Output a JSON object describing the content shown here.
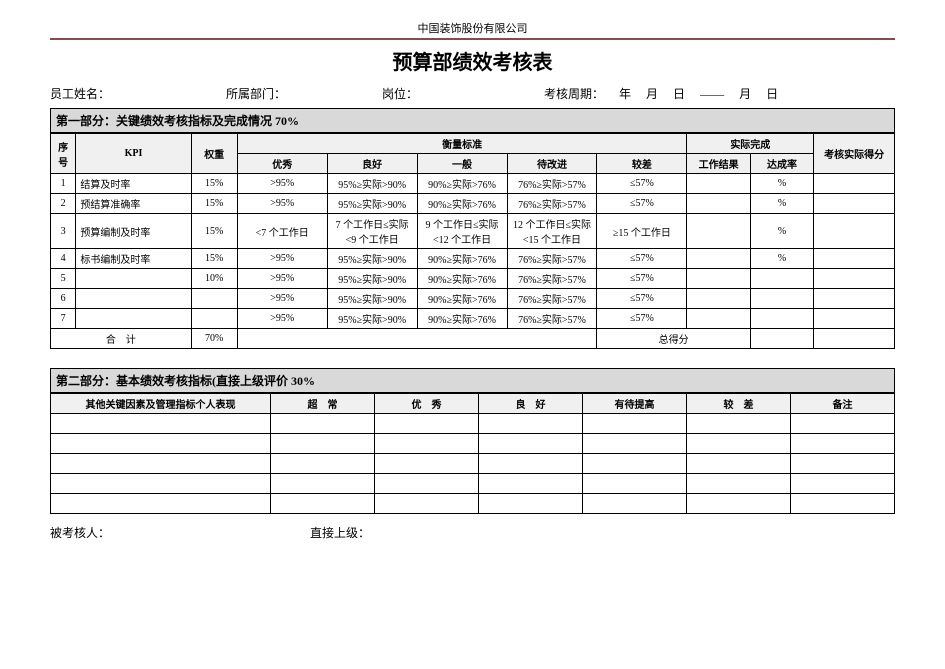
{
  "company": "中国装饰股份有限公司",
  "title": "预算部绩效考核表",
  "info": {
    "name_label": "员工姓名：",
    "dept_label": "所属部门：",
    "post_label": "岗位：",
    "period_label": "考核周期：",
    "year": "年",
    "month": "月",
    "day": "日",
    "dash": "——",
    "month2": "月",
    "day2": "日"
  },
  "section1": {
    "header": "第一部分：关键绩效考核指标及完成情况 70%",
    "cols": {
      "idx": "序号",
      "kpi": "KPI",
      "weight": "权重",
      "standard": "衡量标准",
      "excellent": "优秀",
      "good": "良好",
      "normal": "一般",
      "improve": "待改进",
      "poor": "较差",
      "actual": "实际完成",
      "work_result": "工作结果",
      "rate": "达成率",
      "score": "考核实际得分"
    },
    "rows": [
      {
        "idx": "1",
        "kpi": "结算及时率",
        "wt": "15%",
        "ex": ">95%",
        "gd": "95%≥实际>90%",
        "nm": "90%≥实际>76%",
        "im": "76%≥实际>57%",
        "pr": "≤57%",
        "res": "",
        "rate": "%",
        "sc": ""
      },
      {
        "idx": "2",
        "kpi": "预结算准确率",
        "wt": "15%",
        "ex": ">95%",
        "gd": "95%≥实际>90%",
        "nm": "90%≥实际>76%",
        "im": "76%≥实际>57%",
        "pr": "≤57%",
        "res": "",
        "rate": "%",
        "sc": ""
      },
      {
        "idx": "3",
        "kpi": "预算编制及时率",
        "wt": "15%",
        "ex": "<7 个工作日",
        "gd": "7 个工作日≤实际<9 个工作日",
        "nm": "9 个工作日≤实际<12 个工作日",
        "im": "12 个工作日≤实际<15 个工作日",
        "pr": "≥15 个工作日",
        "res": "",
        "rate": "%",
        "sc": ""
      },
      {
        "idx": "4",
        "kpi": "标书编制及时率",
        "wt": "15%",
        "ex": ">95%",
        "gd": "95%≥实际>90%",
        "nm": "90%≥实际>76%",
        "im": "76%≥实际>57%",
        "pr": "≤57%",
        "res": "",
        "rate": "%",
        "sc": ""
      },
      {
        "idx": "5",
        "kpi": "",
        "wt": "10%",
        "ex": ">95%",
        "gd": "95%≥实际>90%",
        "nm": "90%≥实际>76%",
        "im": "76%≥实际>57%",
        "pr": "≤57%",
        "res": "",
        "rate": "",
        "sc": ""
      },
      {
        "idx": "6",
        "kpi": "",
        "wt": "",
        "ex": ">95%",
        "gd": "95%≥实际>90%",
        "nm": "90%≥实际>76%",
        "im": "76%≥实际>57%",
        "pr": "≤57%",
        "res": "",
        "rate": "",
        "sc": ""
      },
      {
        "idx": "7",
        "kpi": "",
        "wt": "",
        "ex": ">95%",
        "gd": "95%≥实际>90%",
        "nm": "90%≥实际>76%",
        "im": "76%≥实际>57%",
        "pr": "≤57%",
        "res": "",
        "rate": "",
        "sc": ""
      }
    ],
    "total_label": "合　计",
    "total_weight": "70%",
    "total_score_label": "总得分"
  },
  "section2": {
    "header": "第二部分：基本绩效考核指标(直接上级评价 30%",
    "cols": {
      "other": "其他关键因素及管理指标个人表现",
      "excellent": "超　常",
      "good": "优　秀",
      "normal": "良　好",
      "improve": "有待提高",
      "poor": "较　差",
      "note": "备注"
    },
    "blank_rows": 5
  },
  "sign": {
    "person": "被考核人：",
    "supervisor": "直接上级："
  },
  "colors": {
    "border": "#000000",
    "section_bg": "#d9d9d9",
    "header_bg": "#f0f0f0",
    "hr": "#8b4a4a"
  }
}
